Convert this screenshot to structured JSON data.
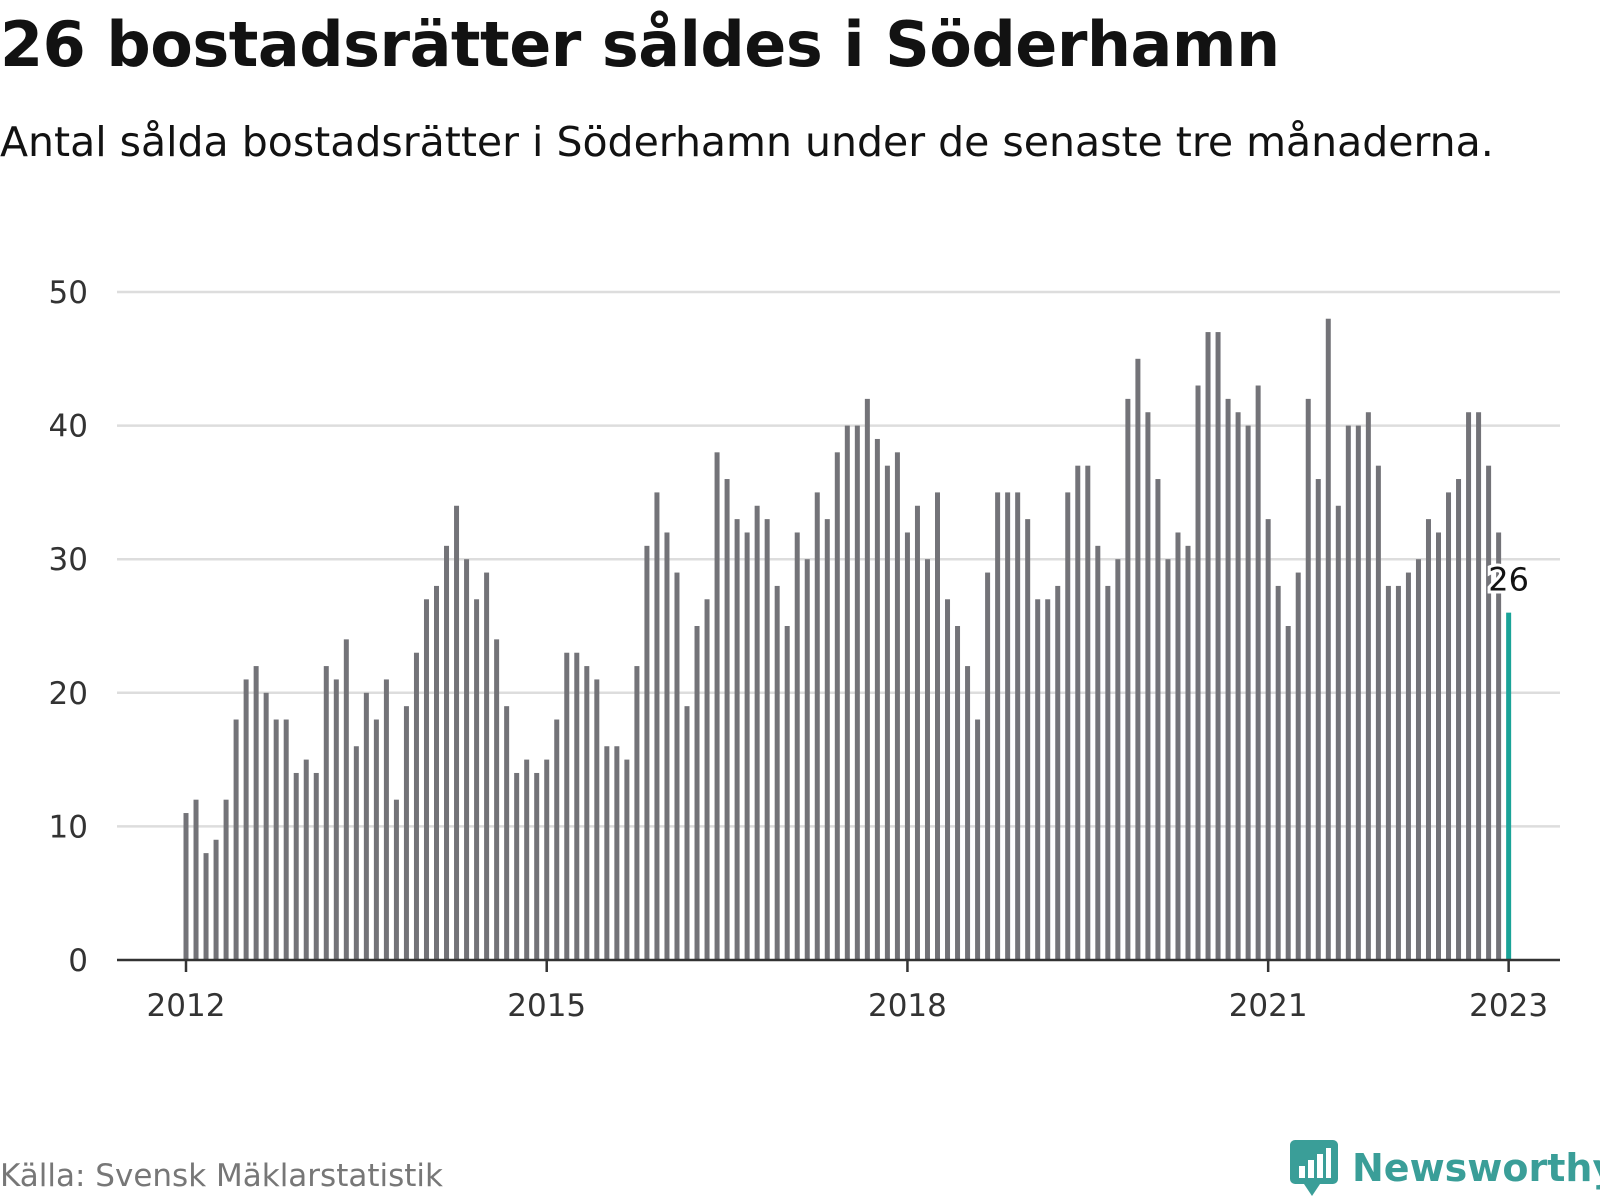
{
  "title": "26 bostadsrätter såldes i Söderhamn",
  "subtitle": "Antal sålda bostadsrätter i Söderhamn under de senaste tre månaderna.",
  "source": "Källa: Svensk Mäklarstatistik",
  "brand": {
    "name": "Newsworthy",
    "icon": "newsworthy-logo-icon",
    "color": "#3a9e98"
  },
  "colors": {
    "bar": "#737378",
    "highlight": "#1aa398",
    "grid": "#dddddd",
    "axis": "#333333"
  },
  "chart_data": {
    "type": "bar",
    "title": "26 bostadsrätter såldes i Söderhamn",
    "subtitle": "Antal sålda bostadsrätter i Söderhamn under de senaste tre månaderna.",
    "xlabel": "",
    "ylabel": "",
    "ylim": [
      0,
      50
    ],
    "yticks": [
      "0",
      "10",
      "20",
      "30",
      "40",
      "50"
    ],
    "xticks": [
      "2012",
      "2015",
      "2018",
      "2021",
      "2023"
    ],
    "grid": true,
    "legend": "none",
    "start_month": "2012-01",
    "values": [
      11,
      12,
      8,
      9,
      12,
      18,
      21,
      22,
      20,
      18,
      18,
      14,
      15,
      14,
      22,
      21,
      24,
      16,
      20,
      18,
      21,
      12,
      19,
      23,
      27,
      28,
      31,
      34,
      30,
      27,
      29,
      24,
      19,
      14,
      15,
      14,
      15,
      18,
      23,
      23,
      22,
      21,
      16,
      16,
      15,
      22,
      31,
      35,
      32,
      29,
      19,
      25,
      27,
      38,
      36,
      33,
      32,
      34,
      33,
      28,
      25,
      32,
      30,
      35,
      33,
      38,
      40,
      40,
      42,
      39,
      37,
      38,
      32,
      34,
      30,
      35,
      27,
      25,
      22,
      18,
      29,
      35,
      35,
      35,
      33,
      27,
      27,
      28,
      35,
      37,
      37,
      31,
      28,
      30,
      42,
      45,
      41,
      36,
      30,
      32,
      31,
      43,
      47,
      47,
      42,
      41,
      40,
      43,
      33,
      28,
      25,
      29,
      42,
      36,
      48,
      34,
      40,
      40,
      41,
      37,
      28,
      28,
      29,
      30,
      33,
      32,
      35,
      36,
      41,
      41,
      37,
      32,
      26
    ],
    "highlight_last": true,
    "last_label": "26"
  }
}
